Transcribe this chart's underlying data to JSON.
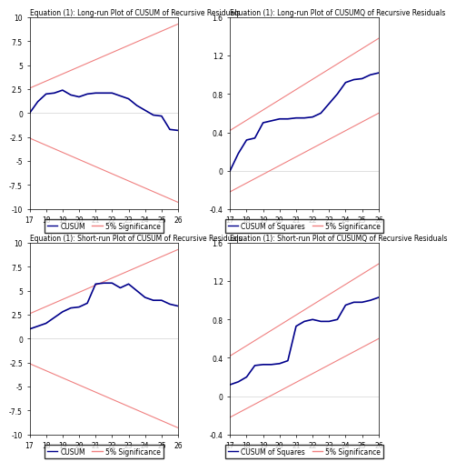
{
  "x_ticks": [
    17,
    18,
    19,
    20,
    21,
    22,
    23,
    24,
    25,
    26
  ],
  "x_range": [
    17,
    26
  ],
  "cusum_lr_x": [
    17,
    17.5,
    18,
    18.5,
    19,
    19.5,
    20,
    20.5,
    21,
    21.5,
    22,
    22.5,
    23,
    23.5,
    24,
    24.5,
    25,
    25.5,
    26
  ],
  "cusum_lr_y": [
    0.0,
    1.2,
    2.0,
    2.1,
    2.4,
    1.9,
    1.7,
    2.0,
    2.1,
    2.1,
    2.1,
    1.8,
    1.5,
    0.8,
    0.3,
    -0.2,
    -0.3,
    -1.7,
    -1.8
  ],
  "cusumq_lr_x": [
    17,
    17.5,
    18,
    18.5,
    19,
    19.5,
    20,
    20.5,
    21,
    21.5,
    22,
    22.5,
    23,
    23.5,
    24,
    24.5,
    25,
    25.5,
    26
  ],
  "cusumq_lr_y": [
    0.0,
    0.18,
    0.32,
    0.34,
    0.5,
    0.52,
    0.54,
    0.54,
    0.55,
    0.55,
    0.56,
    0.6,
    0.7,
    0.8,
    0.92,
    0.95,
    0.96,
    1.0,
    1.02
  ],
  "cusum_sr_x": [
    17,
    17.5,
    18,
    18.5,
    19,
    19.5,
    20,
    20.5,
    21,
    21.5,
    22,
    22.5,
    23,
    23.5,
    24,
    24.5,
    25,
    25.5,
    26
  ],
  "cusum_sr_y": [
    1.0,
    1.3,
    1.6,
    2.2,
    2.8,
    3.2,
    3.3,
    3.7,
    5.7,
    5.8,
    5.8,
    5.3,
    5.7,
    5.0,
    4.3,
    4.0,
    4.0,
    3.6,
    3.4
  ],
  "cusumq_sr_x": [
    17,
    17.5,
    18,
    18.5,
    19,
    19.5,
    20,
    20.5,
    21,
    21.5,
    22,
    22.5,
    23,
    23.5,
    24,
    24.5,
    25,
    25.5,
    26
  ],
  "cusumq_sr_y": [
    0.12,
    0.15,
    0.2,
    0.32,
    0.33,
    0.33,
    0.34,
    0.37,
    0.73,
    0.78,
    0.8,
    0.78,
    0.78,
    0.8,
    0.95,
    0.98,
    0.98,
    1.0,
    1.03
  ],
  "cusum_ylim": [
    -10.0,
    10.0
  ],
  "cusum_yticks": [
    -10.0,
    -7.5,
    -5.0,
    -2.5,
    0.0,
    2.5,
    5.0,
    7.5,
    10.0
  ],
  "cusumq_ylim": [
    -0.4,
    1.6
  ],
  "cusumq_yticks": [
    -0.4,
    0.0,
    0.4,
    0.8,
    1.2,
    1.6
  ],
  "cusumq_upper_sig": [
    0.42,
    1.38
  ],
  "cusumq_lower_sig": [
    -0.22,
    0.6
  ],
  "sig_color": "#f08080",
  "data_color": "#00008B",
  "title_lr_cusum": "Equation (1): Long-run Plot of CUSUM of Recursive Residuals",
  "title_lr_cusumq": "Equation (1): Long-run Plot of CUSUMQ of Recursive Residuals",
  "title_sr_cusum": "Equation (1): Short-run Plot of CUSUM of Recursive Residuals",
  "title_sr_cusumq": "Equation (1): Short-run Plot of CUSUMQ of Recursive Residuals",
  "legend_cusum": [
    "CUSUM",
    "5% Significance"
  ],
  "legend_cusumq": [
    "CUSUM of Squares",
    "5% Significance"
  ],
  "title_fontsize": 5.5,
  "legend_fontsize": 5.5,
  "tick_fontsize": 5.5,
  "background_color": "#ffffff"
}
